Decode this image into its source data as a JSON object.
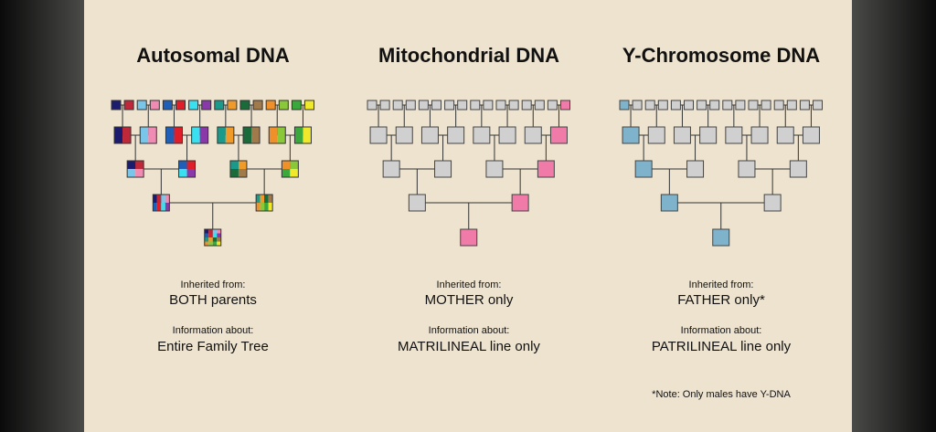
{
  "panels": [
    {
      "title": "Autosomal DNA",
      "inherited_label": "Inherited from:",
      "inherited_value": "BOTH parents",
      "info_label": "Information about:",
      "info_value": "Entire Family Tree"
    },
    {
      "title": "Mitochondrial DNA",
      "inherited_label": "Inherited from:",
      "inherited_value": "MOTHER only",
      "info_label": "Information about:",
      "info_value": "MATRILINEAL line only"
    },
    {
      "title": "Y-Chromosome DNA",
      "inherited_label": "Inherited from:",
      "inherited_value": "FATHER only*",
      "info_label": "Information about:",
      "info_value": "PATRILINEAL line only"
    }
  ],
  "note": "*Note: Only males have Y-DNA"
}
